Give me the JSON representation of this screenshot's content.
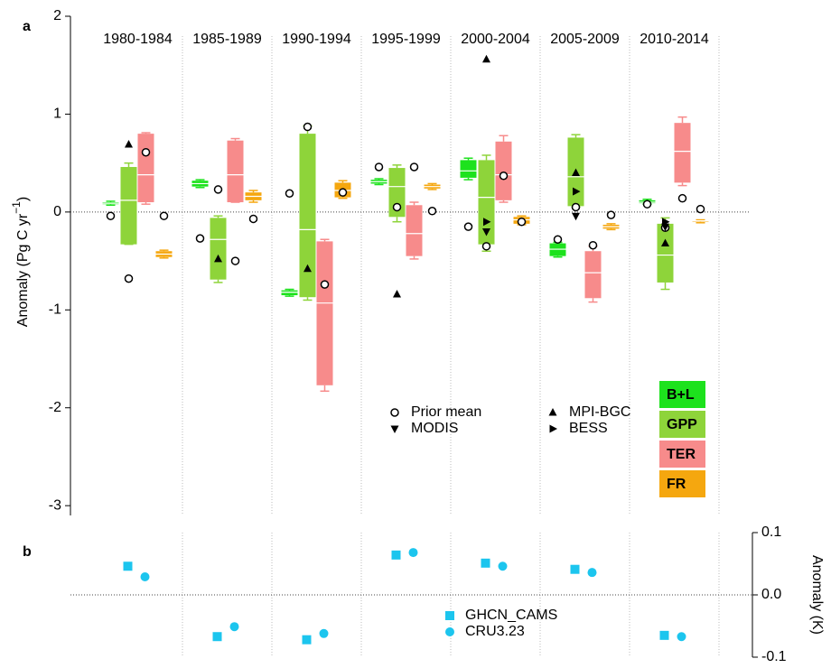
{
  "chart_data": [
    {
      "type": "box",
      "panel_label": "a",
      "categories": [
        "1980-1984",
        "1985-1989",
        "1990-1994",
        "1995-1999",
        "2000-2004",
        "2005-2009",
        "2010-2014"
      ],
      "ylabel_parts": [
        "Anomaly (Pg C yr",
        "−1",
        ")"
      ],
      "ylim": [
        -3.1,
        2
      ],
      "yticks": [
        2,
        1,
        0,
        -1,
        -2,
        -3
      ],
      "zero_line": true,
      "series": [
        {
          "name": "B+L",
          "color": "#1de21d",
          "values": [
            {
              "low": 0.07,
              "q1": 0.08,
              "median": 0.09,
              "q3": 0.1,
              "high": 0.11
            },
            {
              "low": 0.25,
              "q1": 0.26,
              "median": 0.29,
              "q3": 0.32,
              "high": 0.33
            },
            {
              "low": -0.86,
              "q1": -0.85,
              "median": -0.82,
              "q3": -0.8,
              "high": -0.79
            },
            {
              "low": 0.28,
              "q1": 0.29,
              "median": 0.31,
              "q3": 0.33,
              "high": 0.34
            },
            {
              "low": 0.33,
              "q1": 0.35,
              "median": 0.42,
              "q3": 0.53,
              "high": 0.55
            },
            {
              "low": -0.46,
              "q1": -0.45,
              "median": -0.38,
              "q3": -0.32,
              "high": -0.31
            },
            {
              "low": 0.08,
              "q1": 0.09,
              "median": 0.1,
              "q3": 0.12,
              "high": 0.13
            }
          ]
        },
        {
          "name": "GPP",
          "color": "#8ed43a",
          "values": [
            {
              "low": -0.33,
              "q1": -0.33,
              "median": 0.12,
              "q3": 0.46,
              "high": 0.5
            },
            {
              "low": -0.72,
              "q1": -0.69,
              "median": -0.28,
              "q3": -0.06,
              "high": -0.04
            },
            {
              "low": -0.9,
              "q1": -0.87,
              "median": -0.18,
              "q3": 0.8,
              "high": 0.88
            },
            {
              "low": -0.1,
              "q1": -0.05,
              "median": 0.26,
              "q3": 0.45,
              "high": 0.48
            },
            {
              "low": -0.4,
              "q1": -0.33,
              "median": 0.15,
              "q3": 0.53,
              "high": 0.58
            },
            {
              "low": 0.05,
              "q1": 0.06,
              "median": 0.36,
              "q3": 0.76,
              "high": 0.79
            },
            {
              "low": -0.79,
              "q1": -0.72,
              "median": -0.44,
              "q3": -0.12,
              "high": -0.06
            }
          ]
        },
        {
          "name": "TER",
          "color": "#f78b8b",
          "values": [
            {
              "low": 0.08,
              "q1": 0.1,
              "median": 0.38,
              "q3": 0.8,
              "high": 0.81
            },
            {
              "low": 0.1,
              "q1": 0.1,
              "median": 0.38,
              "q3": 0.73,
              "high": 0.75
            },
            {
              "low": -1.83,
              "q1": -1.77,
              "median": -0.93,
              "q3": -0.3,
              "high": -0.28
            },
            {
              "low": -0.48,
              "q1": -0.45,
              "median": -0.22,
              "q3": 0.07,
              "high": 0.1
            },
            {
              "low": 0.1,
              "q1": 0.12,
              "median": 0.38,
              "q3": 0.72,
              "high": 0.78
            },
            {
              "low": -0.92,
              "q1": -0.88,
              "median": -0.62,
              "q3": -0.4,
              "high": -0.35
            },
            {
              "low": 0.27,
              "q1": 0.3,
              "median": 0.62,
              "q3": 0.91,
              "high": 0.97
            }
          ]
        },
        {
          "name": "FR",
          "color": "#f5a70f",
          "values": [
            {
              "low": -0.47,
              "q1": -0.46,
              "median": -0.43,
              "q3": -0.4,
              "high": -0.39
            },
            {
              "low": 0.1,
              "q1": 0.12,
              "median": 0.16,
              "q3": 0.2,
              "high": 0.22
            },
            {
              "low": 0.14,
              "q1": 0.15,
              "median": 0.22,
              "q3": 0.3,
              "high": 0.32
            },
            {
              "low": 0.23,
              "q1": 0.24,
              "median": 0.26,
              "q3": 0.28,
              "high": 0.29
            },
            {
              "low": -0.13,
              "q1": -0.12,
              "median": -0.08,
              "q3": -0.05,
              "high": -0.04
            },
            {
              "low": -0.18,
              "q1": -0.17,
              "median": -0.15,
              "q3": -0.13,
              "high": -0.12
            },
            {
              "low": -0.11,
              "q1": -0.1,
              "median": -0.09,
              "q3": -0.09,
              "high": -0.08
            }
          ]
        }
      ],
      "markers": [
        {
          "name": "Prior mean",
          "symbol": "circle",
          "values": [
            [
              -0.04,
              -0.68,
              0.61,
              -0.04
            ],
            [
              -0.27,
              0.23,
              -0.5,
              -0.07
            ],
            [
              0.19,
              0.87,
              -0.74,
              0.2
            ],
            [
              0.46,
              0.05,
              0.46,
              0.01
            ],
            [
              -0.15,
              -0.35,
              0.37,
              -0.1
            ],
            [
              -0.28,
              0.05,
              -0.34,
              -0.03
            ],
            [
              0.08,
              -0.16,
              0.14,
              0.03
            ]
          ]
        },
        {
          "name": "MPI-BGC",
          "symbol": "triangle-up",
          "values": [
            0.69,
            -0.48,
            -0.58,
            -0.84,
            1.56,
            0.4,
            -0.32
          ]
        },
        {
          "name": "MODIS",
          "symbol": "triangle-down",
          "values": [
            null,
            null,
            null,
            null,
            -0.2,
            -0.04,
            -0.15
          ]
        },
        {
          "name": "BESS",
          "symbol": "triangle-right",
          "values": [
            null,
            null,
            null,
            null,
            -0.1,
            0.21,
            -0.1
          ]
        }
      ]
    },
    {
      "type": "scatter",
      "panel_label": "b",
      "ylabel": "Anomaly (K)",
      "ylim": [
        -0.1,
        0.1
      ],
      "yticks": [
        0.1,
        {
          "value": 0,
          "label": "0.0"
        },
        -0.1
      ],
      "zero_line": true,
      "series": [
        {
          "name": "GHCN_CAMS",
          "color": "#1cc5ee",
          "symbol": "square",
          "values": [
            0.046,
            -0.067,
            -0.072,
            0.064,
            0.051,
            0.041,
            -0.065
          ]
        },
        {
          "name": "CRU3.23",
          "color": "#1cc5ee",
          "symbol": "circle",
          "values": [
            0.029,
            -0.051,
            -0.062,
            0.068,
            0.046,
            0.036,
            -0.067
          ]
        }
      ]
    }
  ]
}
